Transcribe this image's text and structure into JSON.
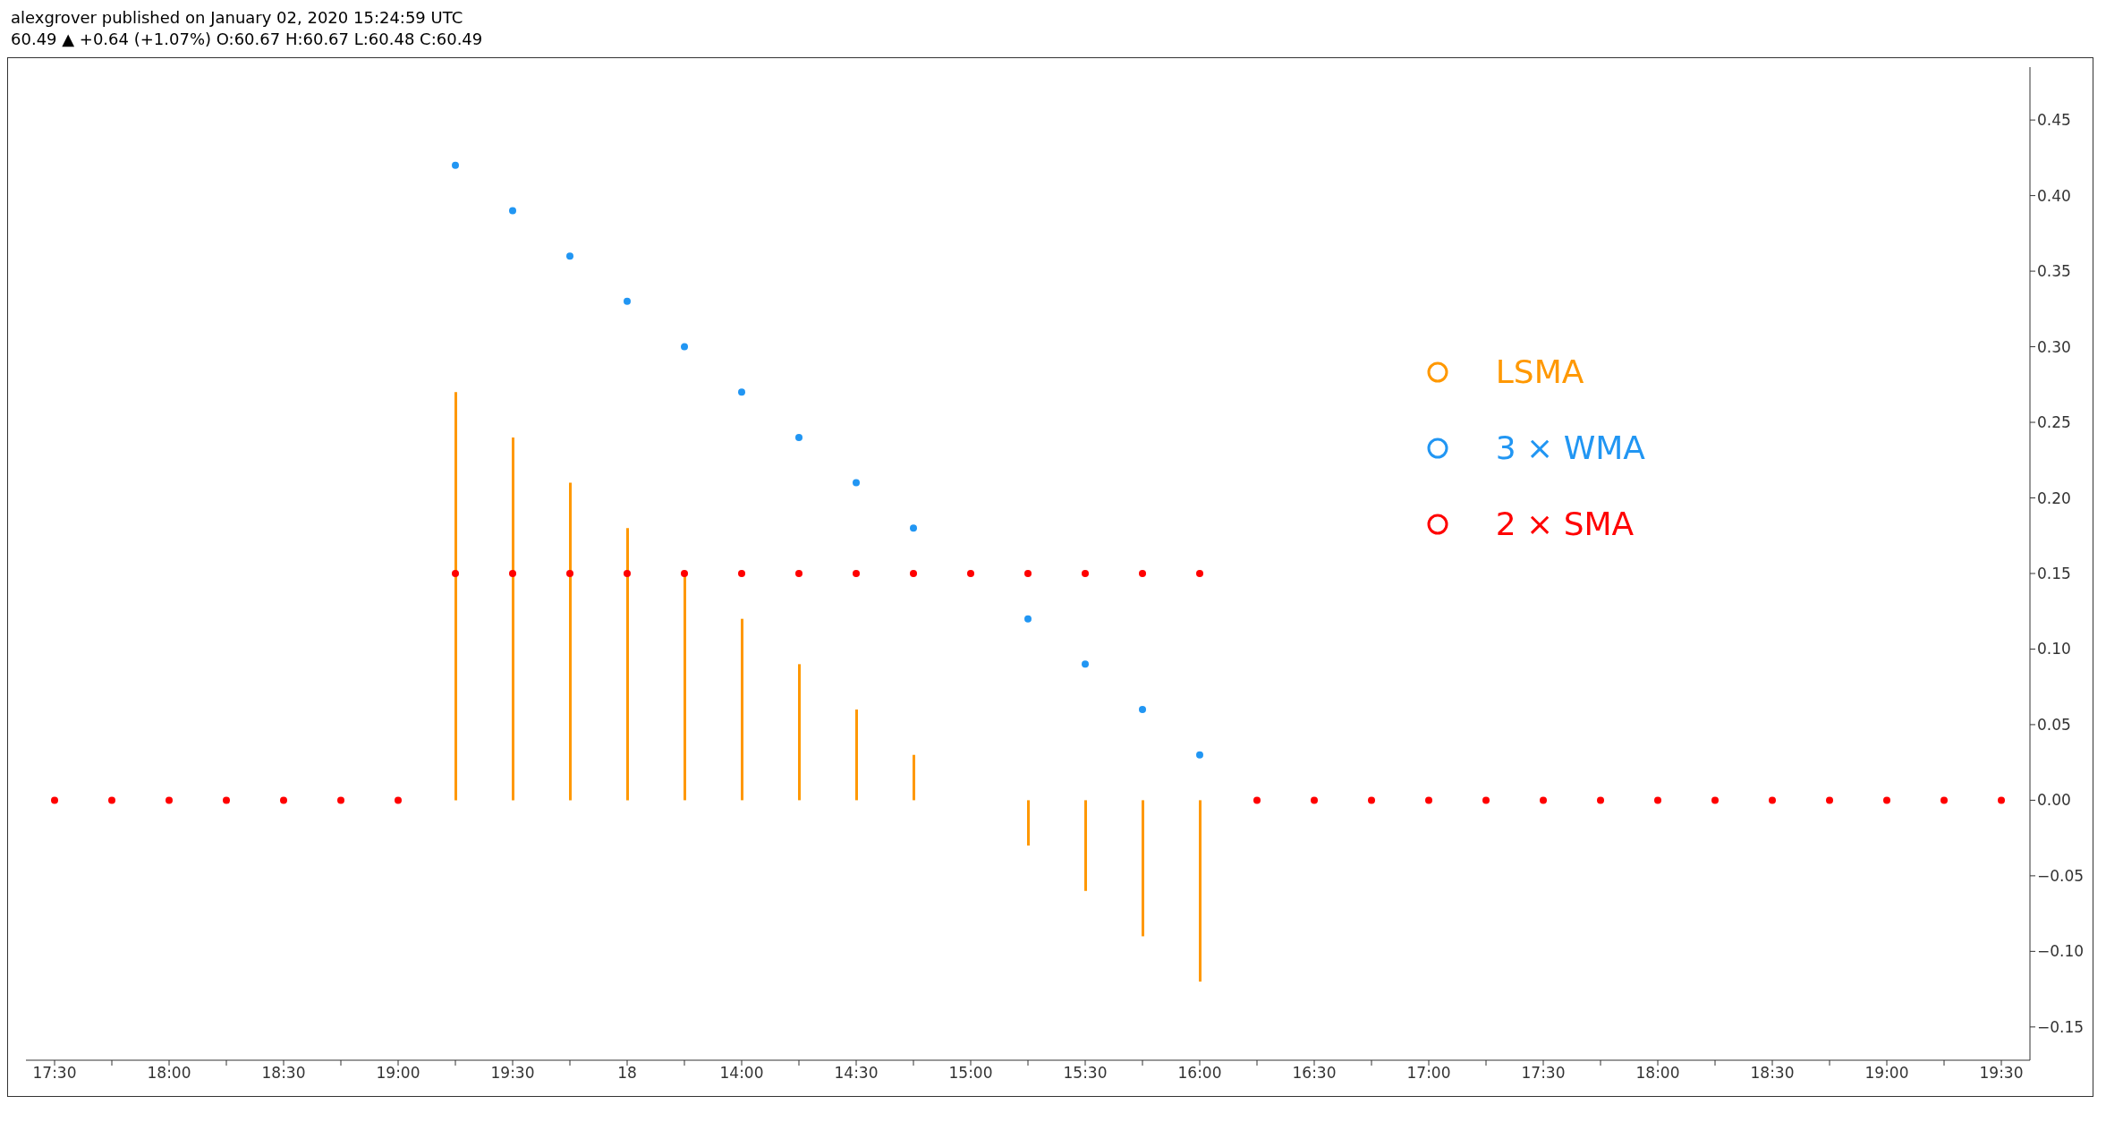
{
  "chart_data": {
    "type": "scatter",
    "annotations": [
      "alexgrover published on January 02, 2020 15:24:59 UTC",
      "60.49 ▲ +0.64 (+1.07%) O:60.67 H:60.67 L:60.48 C:60.49"
    ],
    "categories": [
      "17:30",
      null,
      "18:00",
      null,
      "18:30",
      null,
      "19:00",
      null,
      "19:30",
      null,
      "18",
      null,
      "14:00",
      null,
      "14:30",
      null,
      "15:00",
      null,
      "15:30",
      null,
      "16:00",
      null,
      "16:30",
      null,
      "17:00",
      null,
      "17:30",
      null,
      "18:00",
      null,
      "18:30",
      null,
      "19:00",
      null,
      "19:30"
    ],
    "series": [
      {
        "name": "LSMA",
        "type": "bar",
        "color": "#ff9800",
        "values": [
          null,
          null,
          null,
          null,
          null,
          null,
          null,
          0.27,
          0.24,
          0.21,
          0.18,
          0.15,
          0.12,
          0.09,
          0.06,
          0.03,
          0,
          -0.03,
          -0.06,
          -0.09,
          -0.12,
          null,
          null,
          null,
          null,
          null,
          null,
          null,
          null,
          null,
          null,
          null,
          null,
          null,
          null
        ]
      },
      {
        "name": "3 × WMA",
        "color": "#2196f3",
        "values": [
          null,
          null,
          null,
          null,
          null,
          null,
          null,
          0.42,
          0.39,
          0.36,
          0.33,
          0.3,
          0.27,
          0.24,
          0.21,
          0.18,
          null,
          0.12,
          0.09,
          0.06,
          0.03,
          null,
          null,
          null,
          null,
          null,
          null,
          null,
          null,
          null,
          null,
          null,
          null,
          null,
          null
        ]
      },
      {
        "name": "2 × SMA",
        "color": "#ff0000",
        "values": [
          0,
          0,
          0,
          0,
          0,
          0,
          0,
          0.15,
          0.15,
          0.15,
          0.15,
          0.15,
          0.15,
          0.15,
          0.15,
          0.15,
          0.15,
          0.15,
          0.15,
          0.15,
          0.15,
          0,
          0,
          0,
          0,
          0,
          0,
          0,
          0,
          0,
          0,
          0,
          0,
          0,
          0
        ]
      }
    ],
    "ylim": [
      -0.172,
      0.485
    ],
    "yticks": [
      {
        "value": -0.15,
        "label": "−0.15"
      },
      {
        "value": -0.1,
        "label": "−0.10"
      },
      {
        "value": -0.05,
        "label": "−0.05"
      },
      {
        "value": 0,
        "label": "0.00"
      },
      {
        "value": 0.05,
        "label": "0.05"
      },
      {
        "value": 0.1,
        "label": "0.10"
      },
      {
        "value": 0.15,
        "label": "0.15"
      },
      {
        "value": 0.2,
        "label": "0.20"
      },
      {
        "value": 0.25,
        "label": "0.25"
      },
      {
        "value": 0.3,
        "label": "0.30"
      },
      {
        "value": 0.35,
        "label": "0.35"
      },
      {
        "value": 0.4,
        "label": "0.40"
      },
      {
        "value": 0.45,
        "label": "0.45"
      }
    ],
    "marker": "circle",
    "legend": "top right",
    "grid": false
  }
}
